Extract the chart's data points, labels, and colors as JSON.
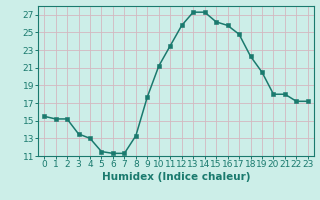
{
  "x": [
    0,
    1,
    2,
    3,
    4,
    5,
    6,
    7,
    8,
    9,
    10,
    11,
    12,
    13,
    14,
    15,
    16,
    17,
    18,
    19,
    20,
    21,
    22,
    23
  ],
  "y": [
    15.5,
    15.2,
    15.2,
    13.5,
    13.0,
    11.5,
    11.3,
    11.3,
    13.3,
    17.7,
    21.2,
    23.5,
    25.8,
    27.3,
    27.3,
    26.2,
    25.8,
    24.8,
    22.3,
    20.5,
    18.0,
    18.0,
    17.2,
    17.2
  ],
  "line_color": "#1a7a6e",
  "marker_color": "#1a7a6e",
  "bg_color": "#cceee8",
  "grid_color": "#d4b8c0",
  "xlabel": "Humidex (Indice chaleur)",
  "ylim": [
    11,
    28
  ],
  "xlim": [
    -0.5,
    23.5
  ],
  "yticks": [
    11,
    13,
    15,
    17,
    19,
    21,
    23,
    25,
    27
  ],
  "xticks": [
    0,
    1,
    2,
    3,
    4,
    5,
    6,
    7,
    8,
    9,
    10,
    11,
    12,
    13,
    14,
    15,
    16,
    17,
    18,
    19,
    20,
    21,
    22,
    23
  ],
  "font_size": 6.5
}
